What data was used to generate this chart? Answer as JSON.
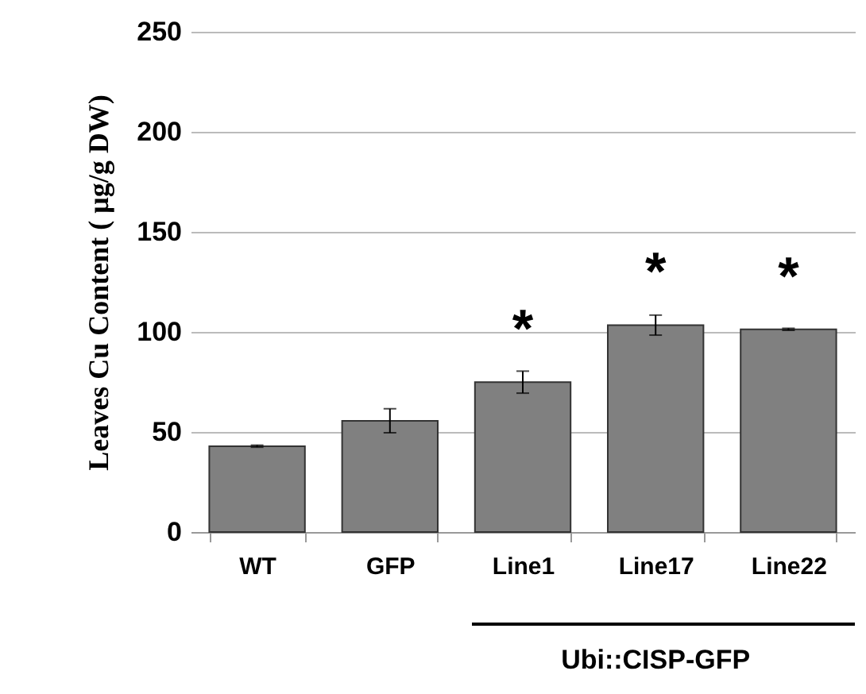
{
  "chart_data": {
    "type": "bar",
    "ylabel": "Leaves Cu Content ( μg/g DW)",
    "categories": [
      "WT",
      "GFP",
      "Line1",
      "Line17",
      "Line22"
    ],
    "values": [
      42.9,
      55.6,
      74.9,
      103.4,
      101.3
    ],
    "errors": [
      0.5,
      6,
      5.5,
      5,
      0.5
    ],
    "color": "#808080",
    "ylim": [
      0,
      250
    ],
    "yticks": [
      0,
      50,
      100,
      150,
      200,
      250
    ],
    "grid": "y",
    "annotations": [
      {
        "text": "*",
        "x": "Line1",
        "y": 74.9
      },
      {
        "text": "*",
        "x": "Line17",
        "y": 103.4
      },
      {
        "text": "*",
        "x": "Line22",
        "y": 101.3
      },
      "Ubi::CISP-GFP"
    ]
  }
}
